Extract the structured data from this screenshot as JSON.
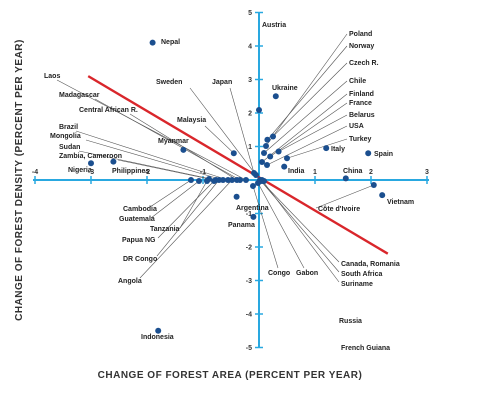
{
  "chart_data": {
    "type": "scatter",
    "xlabel": "CHANGE OF FOREST AREA (PERCENT PER YEAR)",
    "ylabel": "CHANGE OF FOREST DENSITY (PERCENT PER YEAR)",
    "xlim": [
      -4,
      3
    ],
    "ylim": [
      -5,
      5
    ],
    "x_ticks": [
      "-4",
      "-3",
      "-2",
      "-1",
      "1",
      "2",
      "3"
    ],
    "y_ticks": [
      "5",
      "4",
      "3",
      "2",
      "1",
      "-1",
      "-2",
      "-3",
      "-4",
      "-5"
    ],
    "grid": false,
    "trend_line": {
      "x": [
        -3.05,
        2.3
      ],
      "y": [
        3.1,
        -2.2
      ]
    },
    "points": [
      {
        "label": "Austria",
        "x": 0.0,
        "y": 2.1
      },
      {
        "label": "Nepal",
        "x": -1.9,
        "y": 4.1
      },
      {
        "label": "Poland",
        "x": 0.08,
        "y": 1.0
      },
      {
        "label": "Norway",
        "x": 0.15,
        "y": 1.2
      },
      {
        "label": "Czech R.",
        "x": 0.25,
        "y": 1.3
      },
      {
        "label": "Ukraine",
        "x": 0.3,
        "y": 2.5
      },
      {
        "label": "Chile",
        "x": 0.1,
        "y": 0.8
      },
      {
        "label": "Finland",
        "x": 0.05,
        "y": 0.55
      },
      {
        "label": "France",
        "x": 0.2,
        "y": 0.7
      },
      {
        "label": "Belarus",
        "x": 0.35,
        "y": 0.85
      },
      {
        "label": "USA",
        "x": 0.15,
        "y": 0.45
      },
      {
        "label": "Turkey",
        "x": 0.5,
        "y": 0.65
      },
      {
        "label": "Italy",
        "x": 1.2,
        "y": 0.95
      },
      {
        "label": "Spain",
        "x": 1.95,
        "y": 0.8
      },
      {
        "label": "China",
        "x": 1.55,
        "y": 0.05
      },
      {
        "label": "India",
        "x": 0.45,
        "y": 0.4
      },
      {
        "label": "Vietnam",
        "x": 2.2,
        "y": -0.45
      },
      {
        "label": "Côte d'Ivoire",
        "x": 2.05,
        "y": -0.15
      },
      {
        "label": "Sweden",
        "x": -0.05,
        "y": 0.15
      },
      {
        "label": "Japan",
        "x": -0.1,
        "y": 0.2
      },
      {
        "label": "Malaysia",
        "x": -0.45,
        "y": 0.8
      },
      {
        "label": "Myanmar",
        "x": -1.35,
        "y": 0.9
      },
      {
        "label": "Laos",
        "x": -0.2,
        "y": 0.05
      },
      {
        "label": "Madagascar",
        "x": -0.3,
        "y": 0.0
      },
      {
        "label": "Central African R.",
        "x": -0.4,
        "y": 0.0
      },
      {
        "label": "Brazil",
        "x": -0.5,
        "y": 0.0
      },
      {
        "label": "Mongolia",
        "x": -0.6,
        "y": 0.0
      },
      {
        "label": "Sudan",
        "x": -0.7,
        "y": 0.0
      },
      {
        "label": "Zambia, Cameroon",
        "x": -0.9,
        "y": 0.05
      },
      {
        "label": "Nigeria",
        "x": -3.0,
        "y": 0.5
      },
      {
        "label": "Philippines",
        "x": -2.6,
        "y": 0.55
      },
      {
        "label": "Cambodia",
        "x": -1.75,
        "y": 0.0
      },
      {
        "label": "Guatemala",
        "x": -1.55,
        "y": 0.0
      },
      {
        "label": "Tanzania",
        "x": -1.2,
        "y": 0.0
      },
      {
        "label": "Papua NG",
        "x": -1.05,
        "y": 0.0
      },
      {
        "label": "DR Congo",
        "x": -1.0,
        "y": 0.0
      },
      {
        "label": "Angola",
        "x": -0.8,
        "y": 0.0
      },
      {
        "label": "Argentina",
        "x": -0.4,
        "y": -0.5
      },
      {
        "label": "Panama",
        "x": -0.1,
        "y": -1.1
      },
      {
        "label": "Congo",
        "x": -0.1,
        "y": -0.15
      },
      {
        "label": "Gabon",
        "x": 0.0,
        "y": -0.05
      },
      {
        "label": "Canada, Romania",
        "x": 0.02,
        "y": 0.0
      },
      {
        "label": "South Africa",
        "x": 0.04,
        "y": 0.0
      },
      {
        "label": "Suriname",
        "x": 0.06,
        "y": 0.0
      },
      {
        "label": "Russia",
        "x": 0.08,
        "y": 0.0
      },
      {
        "label": "French Guiana",
        "x": 0.1,
        "y": 0.0
      },
      {
        "label": "Indonesia",
        "x": -1.8,
        "y": -4.5
      }
    ]
  }
}
